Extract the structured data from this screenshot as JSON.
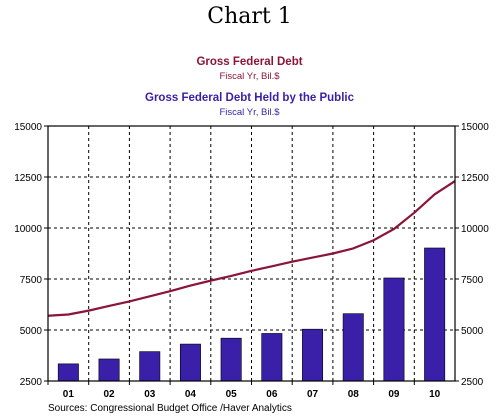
{
  "title": "Chart 1",
  "source": "Sources:  Congressional Budget Office /Haver Analytics",
  "colors": {
    "gross_debt": "#8b1538",
    "public_debt": "#3a1fa8",
    "grid": "#000000",
    "background": "#ffffff"
  },
  "chart_data": {
    "type": "bar",
    "categories": [
      "01",
      "02",
      "03",
      "04",
      "05",
      "06",
      "07",
      "08",
      "09",
      "10"
    ],
    "ylim": [
      2500,
      15000
    ],
    "yticks": [
      2500,
      5000,
      7500,
      10000,
      12500,
      15000
    ],
    "ytick_labels": [
      "2500",
      "5000",
      "7500",
      "10000",
      "12500",
      "15000"
    ],
    "grid": true,
    "legend_position": "top-center",
    "series": [
      {
        "name": "Gross Federal Debt",
        "subtitle": "Fiscal Yr, Bil.$",
        "type": "line",
        "color": "#8b1538",
        "x": [
          0,
          0.5,
          1,
          1.5,
          2,
          2.5,
          3,
          3.5,
          4,
          4.5,
          5,
          5.5,
          6,
          6.5,
          7,
          7.5,
          8,
          8.5,
          9,
          9.5,
          10
        ],
        "values": [
          5700,
          5760,
          5950,
          6180,
          6400,
          6650,
          6900,
          7180,
          7420,
          7650,
          7900,
          8120,
          8350,
          8550,
          8750,
          9000,
          9400,
          9950,
          10750,
          11650,
          12300
        ]
      },
      {
        "name": "Gross Federal Debt Held by the Public",
        "subtitle": "Fiscal Yr, Bil.$",
        "type": "bar",
        "color": "#3a1fa8",
        "values": [
          3340,
          3580,
          3940,
          4310,
          4600,
          4830,
          5040,
          5800,
          7550,
          9020
        ]
      }
    ]
  }
}
